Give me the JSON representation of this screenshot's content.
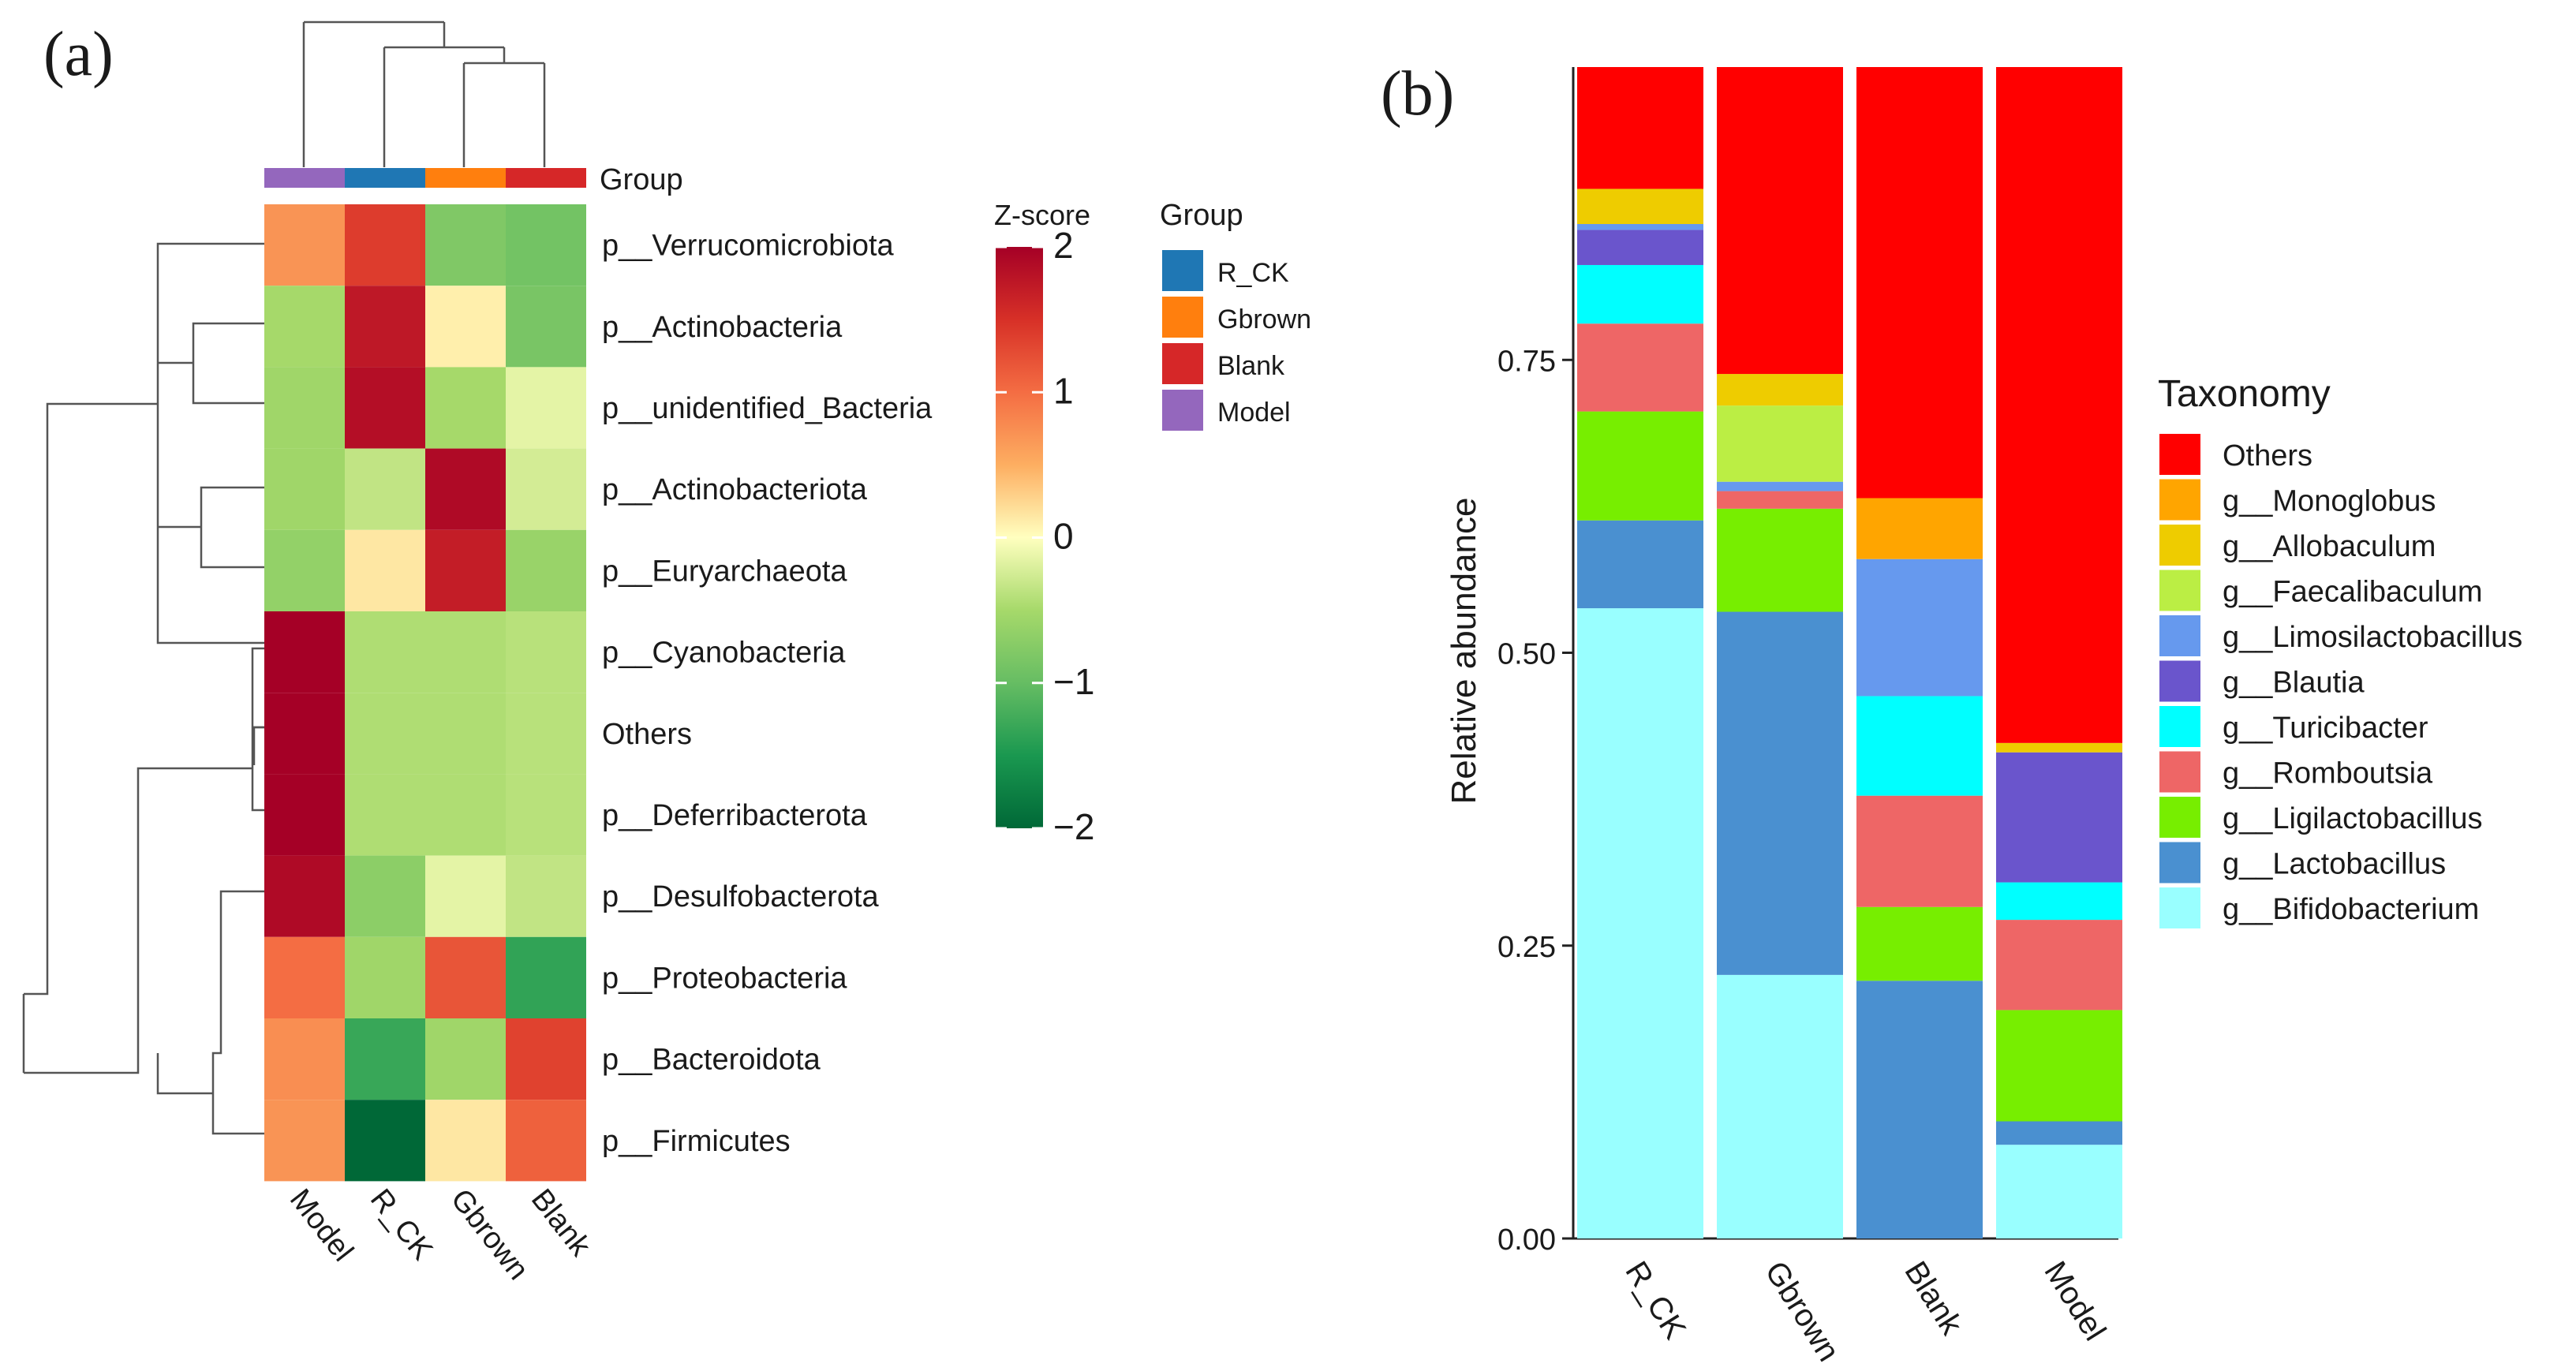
{
  "panel_labels": {
    "a": "(a)",
    "b": "(b)"
  },
  "chart_data": [
    {
      "type": "heatmap",
      "columns": [
        "Model",
        "R_CK",
        "Gbrown",
        "Blank"
      ],
      "column_groups": [
        "Model",
        "R_CK",
        "Gbrown",
        "Blank"
      ],
      "group_header": "Group",
      "rows": [
        "p__Verrucomicrobiota",
        "p__Actinobacteria",
        "p__unidentified_Bacteria",
        "p__Actinobacteriota",
        "p__Euryarchaeota",
        "p__Cyanobacteria",
        "Others",
        "p__Deferribacterota",
        "p__Desulfobacterota",
        "p__Proteobacteria",
        "p__Bacteroidota",
        "p__Firmicutes"
      ],
      "values": [
        [
          0.7,
          1.4,
          -0.8,
          -0.9
        ],
        [
          -0.5,
          1.75,
          0.1,
          -0.85
        ],
        [
          -0.55,
          1.85,
          -0.5,
          -0.15
        ],
        [
          -0.55,
          -0.35,
          1.9,
          -0.25
        ],
        [
          -0.65,
          0.15,
          1.7,
          -0.6
        ],
        [
          2.0,
          -0.45,
          -0.45,
          -0.4
        ],
        [
          2.0,
          -0.45,
          -0.45,
          -0.4
        ],
        [
          2.0,
          -0.45,
          -0.45,
          -0.4
        ],
        [
          1.9,
          -0.7,
          -0.15,
          -0.35
        ],
        [
          1.0,
          -0.55,
          1.2,
          -1.35
        ],
        [
          0.75,
          -1.3,
          -0.55,
          1.35
        ],
        [
          0.7,
          -2.0,
          0.15,
          1.1
        ]
      ],
      "colorbar": {
        "title": "Z-score",
        "min": -2,
        "max": 2,
        "ticks": [
          2,
          1,
          0,
          -1,
          -2
        ]
      },
      "legend": {
        "title": "Group",
        "items": [
          {
            "label": "R_CK",
            "color": "#1f77b4"
          },
          {
            "label": "Gbrown",
            "color": "#ff7f0e"
          },
          {
            "label": "Blank",
            "color": "#d62728"
          },
          {
            "label": "Model",
            "color": "#9467bd"
          }
        ]
      }
    },
    {
      "type": "bar",
      "stacked": true,
      "categories": [
        "R_CK",
        "Gbrown",
        "Blank",
        "Model"
      ],
      "ylabel": "Relative abundance",
      "ylim": [
        0,
        1
      ],
      "yticks": [
        "0.00",
        "0.25",
        "0.50",
        "0.75"
      ],
      "legend_title": "Taxonomy",
      "series": [
        {
          "name": "g__Bifidobacterium",
          "color": "#99ffff",
          "values": [
            0.538,
            0.225,
            0.0,
            0.08
          ]
        },
        {
          "name": "g__Lactobacillus",
          "color": "#4a90d0",
          "values": [
            0.075,
            0.31,
            0.22,
            0.02
          ]
        },
        {
          "name": "g__Ligilactobacillus",
          "color": "#77ee00",
          "values": [
            0.093,
            0.088,
            0.063,
            0.095
          ]
        },
        {
          "name": "g__Romboutsia",
          "color": "#ee6666",
          "values": [
            0.075,
            0.015,
            0.095,
            0.077
          ]
        },
        {
          "name": "g__Turicibacter",
          "color": "#00ffff",
          "values": [
            0.05,
            0.0,
            0.085,
            0.032
          ]
        },
        {
          "name": "g__Blautia",
          "color": "#6a55cc",
          "values": [
            0.03,
            0.0,
            0.0,
            0.111
          ]
        },
        {
          "name": "g__Limosilactobacillus",
          "color": "#6699ee",
          "values": [
            0.005,
            0.008,
            0.117,
            0.0
          ]
        },
        {
          "name": "g__Faecalibaculum",
          "color": "#bbee44",
          "values": [
            0.0,
            0.065,
            0.0,
            0.0
          ]
        },
        {
          "name": "g__Allobaculum",
          "color": "#eecc00",
          "values": [
            0.03,
            0.027,
            0.0,
            0.008
          ]
        },
        {
          "name": "g__Monoglobus",
          "color": "#ffa500",
          "values": [
            0.0,
            0.0,
            0.052,
            0.0
          ]
        },
        {
          "name": "Others",
          "color": "#ff0000",
          "values": [
            0.104,
            0.262,
            0.368,
            0.577
          ]
        }
      ]
    }
  ]
}
